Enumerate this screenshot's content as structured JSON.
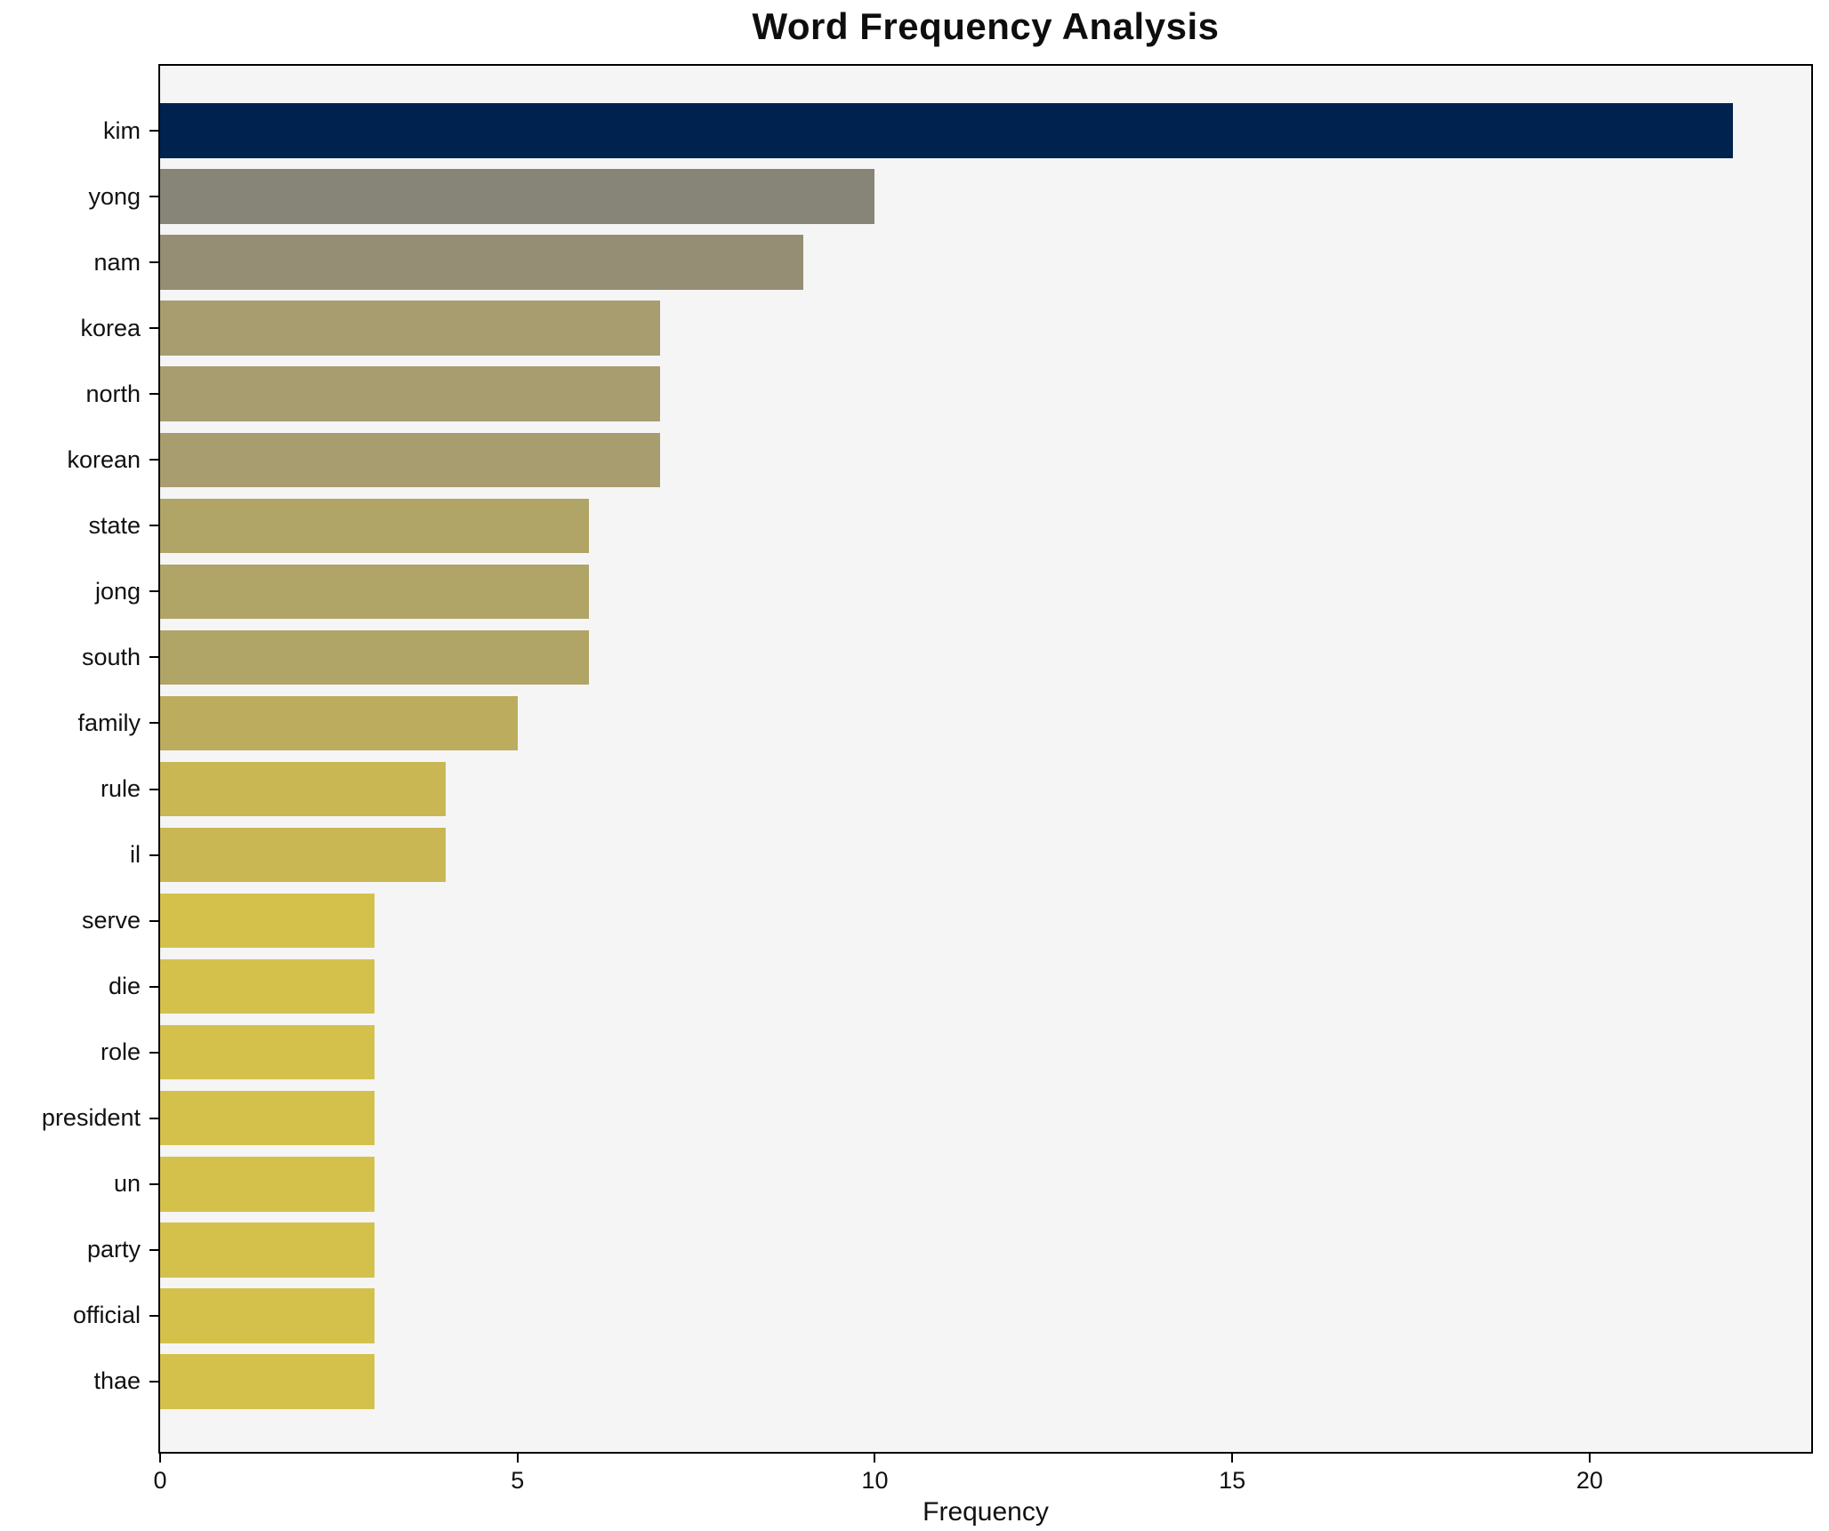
{
  "chart_data": {
    "type": "bar",
    "orientation": "horizontal",
    "title": "Word Frequency Analysis",
    "xlabel": "Frequency",
    "ylabel": "",
    "categories": [
      "kim",
      "yong",
      "nam",
      "korea",
      "north",
      "korean",
      "state",
      "jong",
      "south",
      "family",
      "rule",
      "il",
      "serve",
      "die",
      "role",
      "president",
      "un",
      "party",
      "official",
      "thae"
    ],
    "values": [
      22,
      10,
      9,
      7,
      7,
      7,
      6,
      6,
      6,
      5,
      4,
      4,
      3,
      3,
      3,
      3,
      3,
      3,
      3,
      3
    ],
    "bar_colors": [
      "#00224e",
      "#878578",
      "#958e74",
      "#a89d6e",
      "#a89d6e",
      "#a89d6e",
      "#b0a467",
      "#b0a467",
      "#b0a467",
      "#bcac5d",
      "#c9b754",
      "#c9b754",
      "#d4c14c",
      "#d4c14c",
      "#d4c14c",
      "#d4c14c",
      "#d4c14c",
      "#d4c14c",
      "#d4c14c",
      "#d4c14c"
    ],
    "xticks": [
      "0",
      "5",
      "10",
      "15",
      "20"
    ],
    "xtick_values": [
      0,
      5,
      10,
      15,
      20
    ],
    "xlim": [
      0,
      23.1
    ],
    "grid": false,
    "legend": false,
    "plot_background": "#f5f5f6",
    "figure_background": "#ffffff",
    "spine_color": "#000000"
  }
}
